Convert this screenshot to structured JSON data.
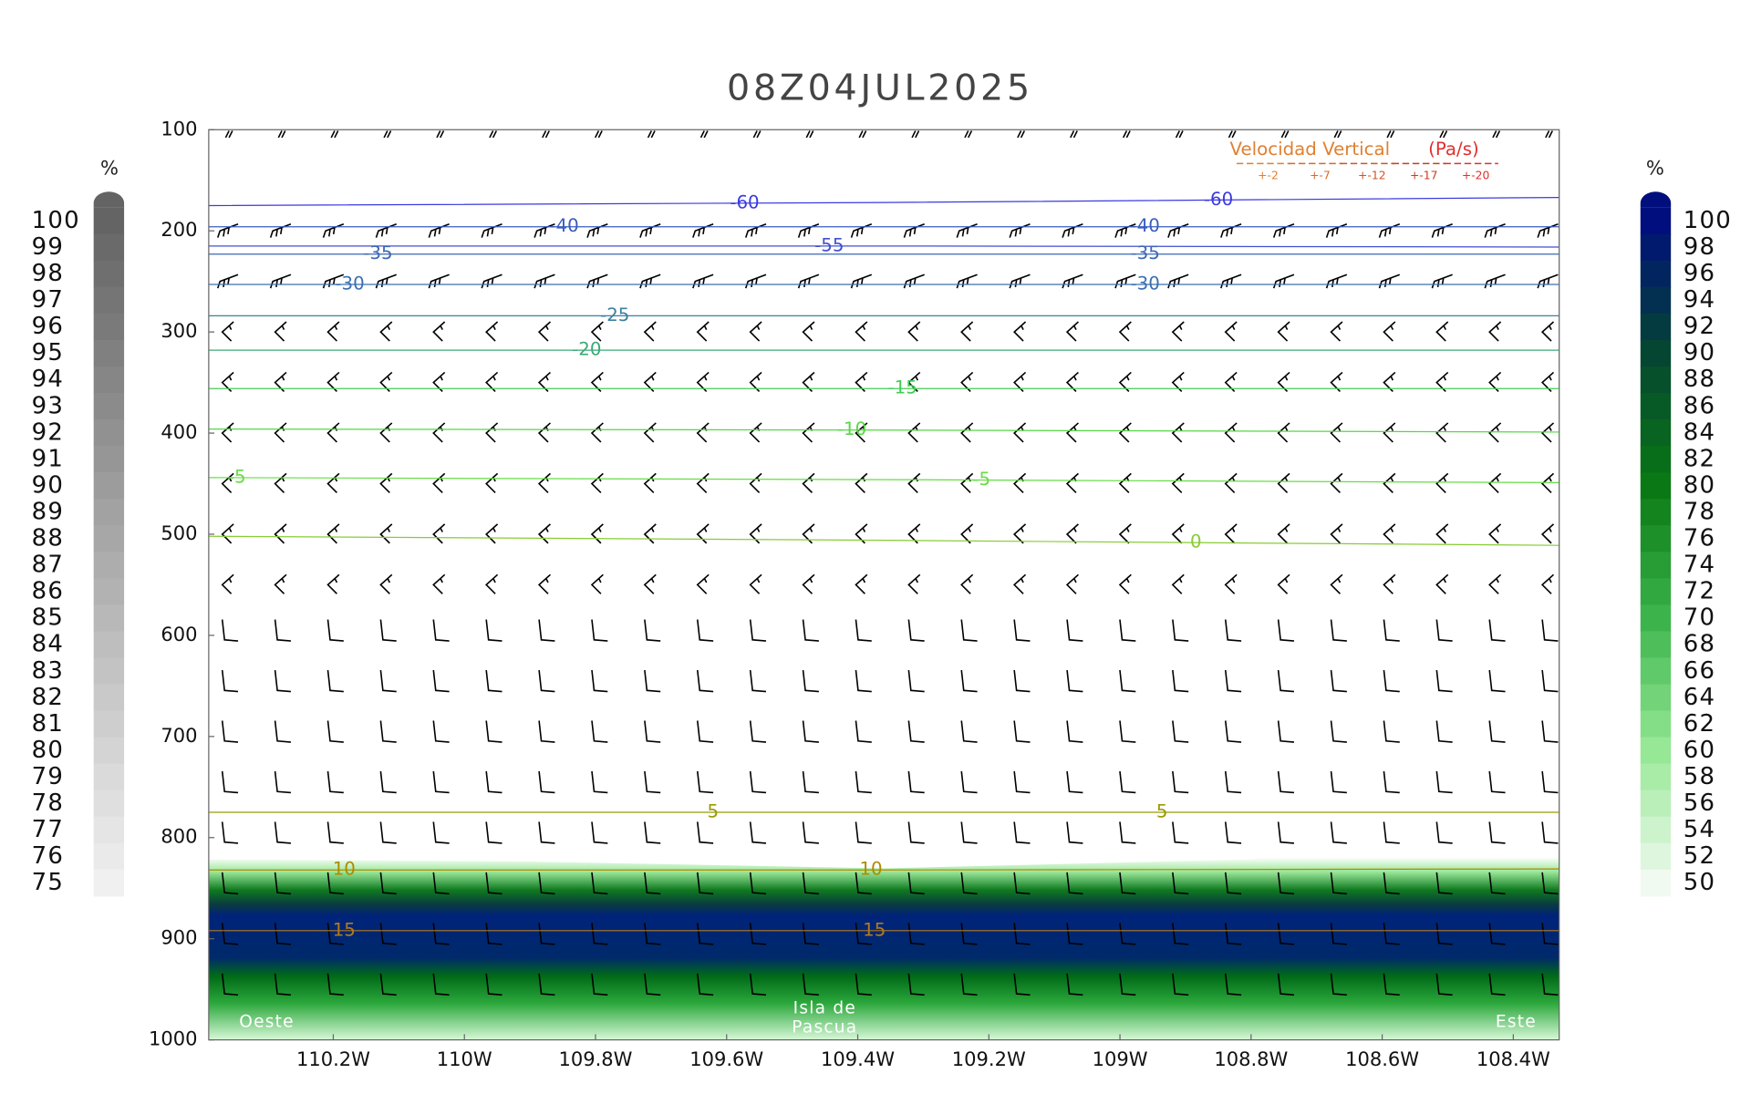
{
  "chart_data": {
    "type": "cross-section",
    "title": "08Z04JUL2025",
    "xlim": [
      -110.39,
      -108.33
    ],
    "xticks": [
      {
        "value": -110.2,
        "label": "110.2W"
      },
      {
        "value": -110.0,
        "label": "110W"
      },
      {
        "value": -109.8,
        "label": "109.8W"
      },
      {
        "value": -109.6,
        "label": "109.6W"
      },
      {
        "value": -109.4,
        "label": "109.4W"
      },
      {
        "value": -109.2,
        "label": "109.2W"
      },
      {
        "value": -109.0,
        "label": "109W"
      },
      {
        "value": -108.8,
        "label": "108.8W"
      },
      {
        "value": -108.6,
        "label": "108.6W"
      },
      {
        "value": -108.4,
        "label": "108.4W"
      }
    ],
    "ylim": [
      1000,
      100
    ],
    "yticks": [
      100,
      200,
      300,
      400,
      500,
      600,
      700,
      800,
      900,
      1000
    ],
    "contour_x": [
      -110.39,
      -109.36,
      -108.33
    ],
    "contours": [
      {
        "level": -60,
        "color": "#3a3ae0",
        "pressure": [
          175,
          172,
          167
        ]
      },
      {
        "level": -55,
        "color": "#4050d0",
        "pressure": [
          215,
          215,
          216
        ]
      },
      {
        "level": -40,
        "color": "#3a5cc0",
        "pressure": [
          196,
          196,
          196
        ]
      },
      {
        "level": -35,
        "color": "#3a68b8",
        "pressure": [
          223,
          223,
          223
        ]
      },
      {
        "level": -30,
        "color": "#3a70b0",
        "pressure": [
          253,
          253,
          253
        ]
      },
      {
        "level": -25,
        "color": "#3a80a0",
        "pressure": [
          284,
          284,
          284
        ]
      },
      {
        "level": -20,
        "color": "#3aaa78",
        "pressure": [
          318,
          318,
          318
        ]
      },
      {
        "level": -15,
        "color": "#44cc55",
        "pressure": [
          356,
          356,
          356
        ]
      },
      {
        "level": -10,
        "color": "#55d845",
        "pressure": [
          396,
          397,
          399
        ]
      },
      {
        "level": -5,
        "color": "#66dd44",
        "pressure": [
          444,
          446,
          449
        ]
      },
      {
        "level": 0,
        "color": "#88cc33",
        "pressure": [
          502,
          506,
          511
        ]
      },
      {
        "level": 5,
        "color": "#9a9a00",
        "pressure": [
          775,
          775,
          775
        ]
      },
      {
        "level": 10,
        "color": "#b08a00",
        "pressure": [
          832,
          832,
          831
        ]
      },
      {
        "level": 15,
        "color": "#b07a22",
        "pressure": [
          892,
          892,
          892
        ]
      }
    ],
    "humidity": {
      "x": [
        -110.39,
        -109.9,
        -109.36,
        -108.8,
        -108.33
      ],
      "top": [
        821.5,
        823.7,
        830.4,
        821.5,
        780
      ]
    },
    "colorbars": [
      {
        "label": "%",
        "ticks": [
          100,
          99,
          98,
          97,
          96,
          95,
          94,
          93,
          92,
          91,
          90,
          89,
          88,
          87,
          86,
          85,
          84,
          83,
          82,
          81,
          80,
          79,
          78,
          77,
          76,
          75
        ]
      },
      {
        "label": "%",
        "ticks": [
          100,
          98,
          96,
          94,
          92,
          90,
          88,
          86,
          84,
          82,
          80,
          78,
          76,
          74,
          72,
          70,
          68,
          66,
          64,
          62,
          60,
          58,
          56,
          54,
          52,
          50
        ]
      }
    ],
    "legend": {
      "title": "Velocidad Vertical",
      "units": "(Pa/s)",
      "labels": [
        "+-2",
        "+-7",
        "+-12",
        "+-17",
        "+-20"
      ],
      "colors": [
        "#e08030",
        "#d86a2a",
        "#d05424",
        "#c83e1e",
        "#e03030"
      ]
    },
    "annotations": [
      "Oeste",
      "Isla de",
      "Pascua",
      "Este"
    ]
  }
}
